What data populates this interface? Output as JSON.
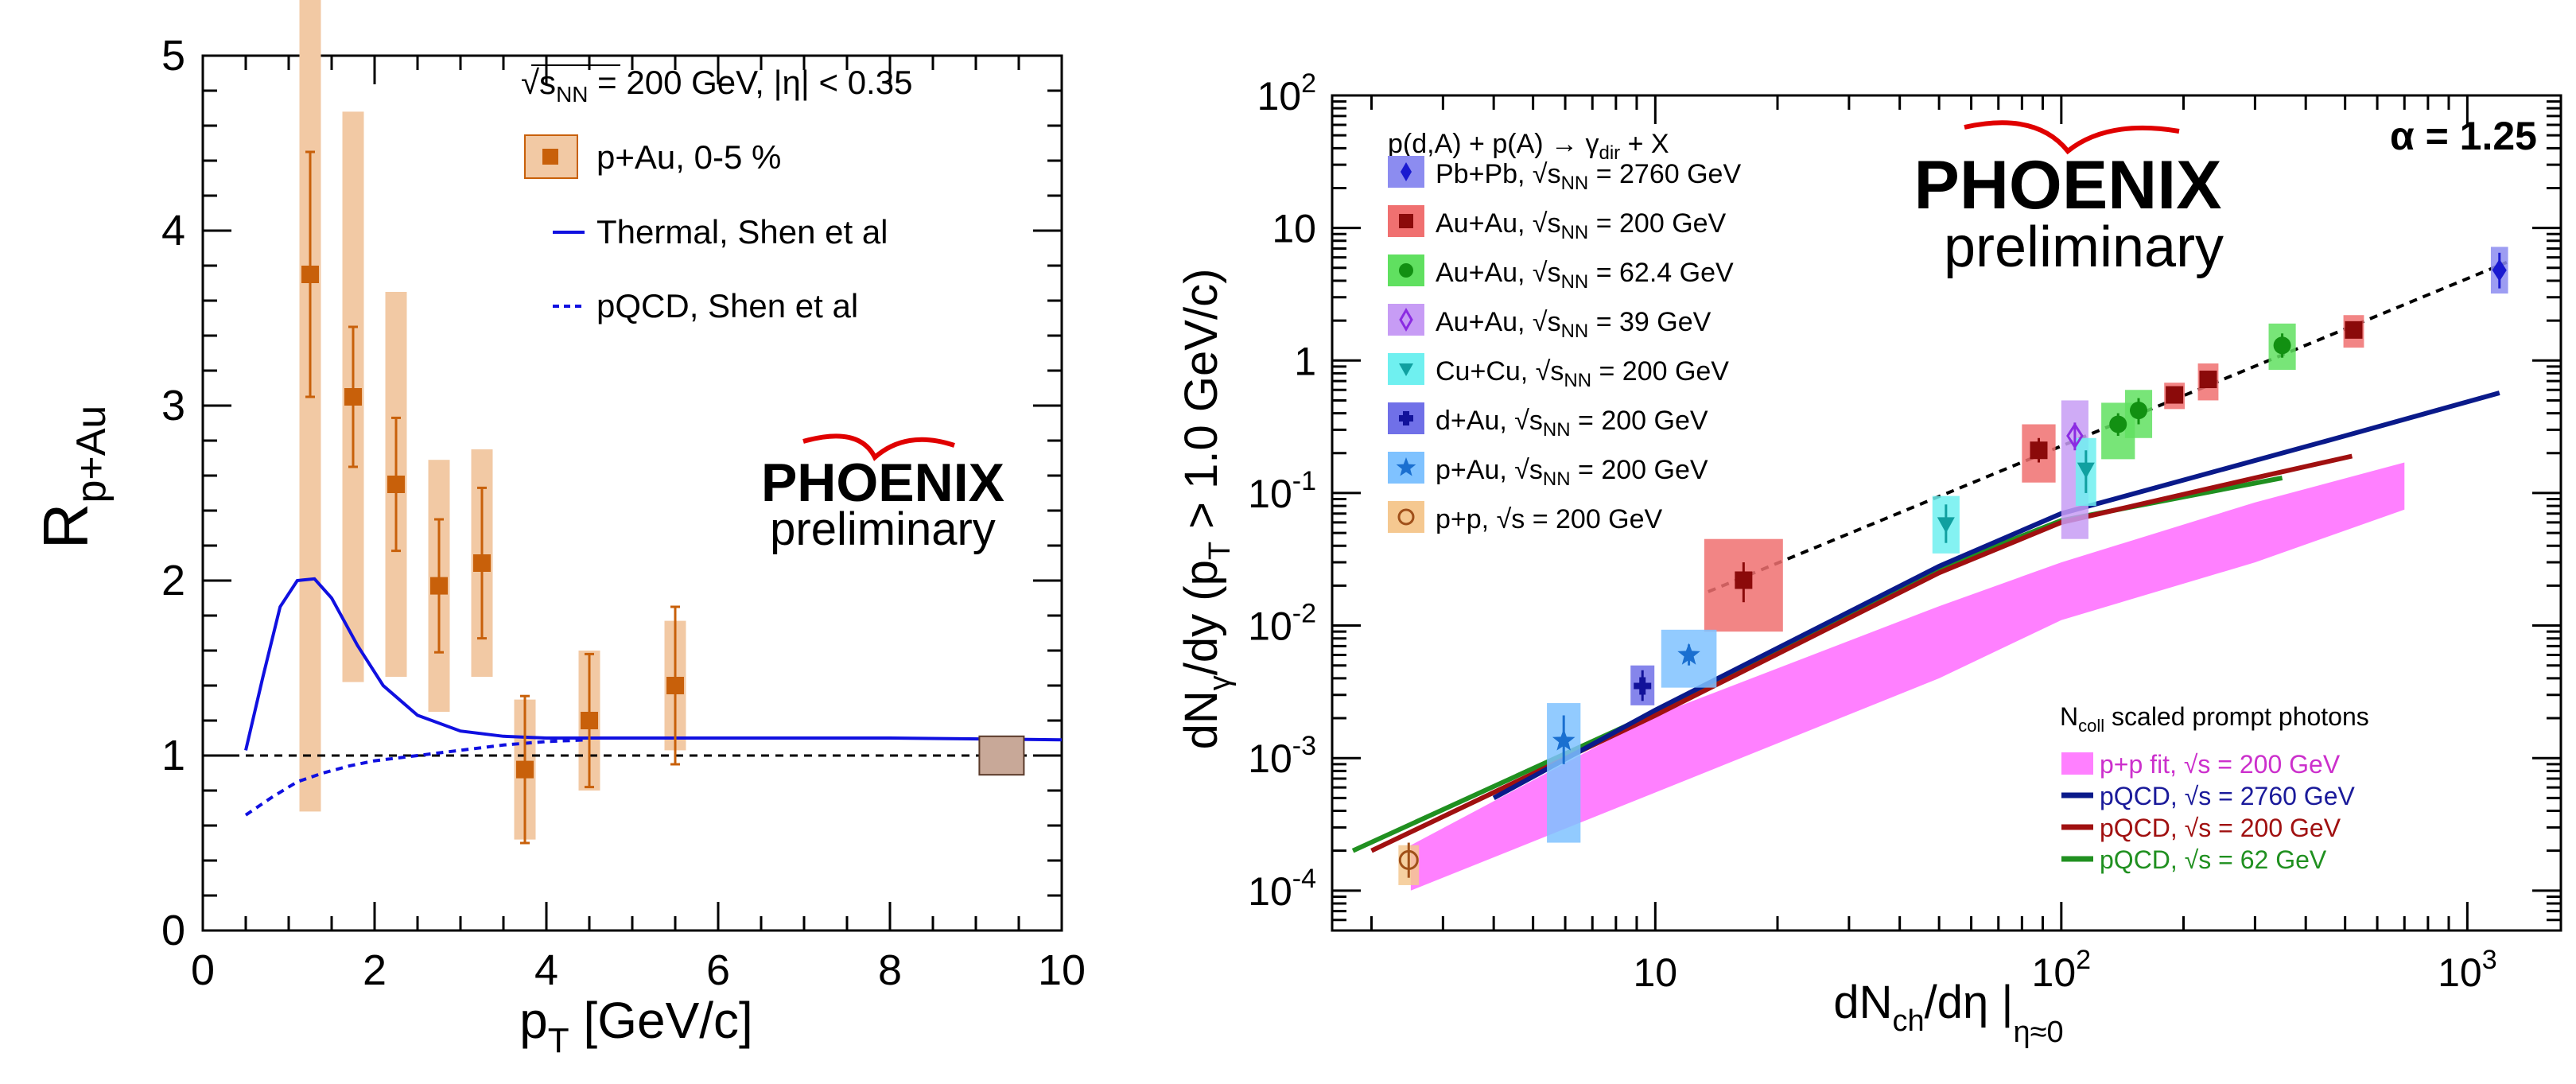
{
  "chart_data": [
    {
      "type": "scatter",
      "title": "",
      "xlabel_main": "p",
      "xlabel_sub": "T",
      "xlabel_rest": " [GeV/c]",
      "ylabel_main": "R",
      "ylabel_sub": "p+Au",
      "xlim": [
        0,
        10
      ],
      "ylim": [
        0,
        5
      ],
      "xticks": [
        0,
        2,
        4,
        6,
        8,
        10
      ],
      "yticks": [
        0,
        1,
        2,
        3,
        4,
        5
      ],
      "xtick_labels": [
        "0",
        "2",
        "4",
        "6",
        "8",
        "10"
      ],
      "ytick_labels": [
        "0",
        "1",
        "2",
        "3",
        "4",
        "5"
      ],
      "reference_line": 1,
      "annotation": {
        "prefix": "√s",
        "sub": "NN",
        "suffix": " = 200 GeV, |η| < 0.35"
      },
      "legend": [
        {
          "label": "p+Au, 0-5 %",
          "style": "box-marker",
          "color": "#c8600a"
        },
        {
          "label": "Thermal, Shen et al",
          "style": "solid",
          "color": "#1010e0"
        },
        {
          "label": "pQCD, Shen et al",
          "style": "dashed",
          "color": "#1010e0"
        }
      ],
      "series": [
        {
          "name": "p+Au, 0-5 %",
          "x": [
            1.25,
            1.75,
            2.25,
            2.75,
            3.25,
            3.75,
            4.5,
            5.5
          ],
          "y": [
            3.75,
            3.05,
            2.55,
            1.97,
            2.1,
            0.92,
            1.2,
            1.4
          ],
          "stat_err": [
            0.7,
            0.4,
            0.38,
            0.38,
            0.43,
            0.42,
            0.38,
            0.45
          ],
          "sys_err": [
            3.07,
            1.63,
            1.1,
            0.72,
            0.65,
            0.4,
            0.4,
            0.37
          ]
        },
        {
          "name": "Thermal, Shen et al",
          "x": [
            0.5,
            0.7,
            0.9,
            1.1,
            1.3,
            1.5,
            1.8,
            2.1,
            2.5,
            3.0,
            3.5,
            4.0,
            5.0,
            6.0,
            8.0,
            10.0
          ],
          "y": [
            1.03,
            1.45,
            1.85,
            2.0,
            2.01,
            1.9,
            1.63,
            1.4,
            1.23,
            1.14,
            1.11,
            1.1,
            1.1,
            1.1,
            1.1,
            1.09
          ]
        },
        {
          "name": "pQCD, Shen et al",
          "x": [
            0.5,
            0.8,
            1.1,
            1.4,
            1.7,
            2.0,
            2.5,
            3.0,
            3.5,
            4.0,
            4.5
          ],
          "y": [
            0.66,
            0.76,
            0.85,
            0.9,
            0.94,
            0.97,
            1.0,
            1.03,
            1.06,
            1.08,
            1.09
          ]
        }
      ],
      "norm_box": {
        "x": 9.3,
        "y": 1.0,
        "half_height": 0.11,
        "color": "#a08070"
      }
    },
    {
      "type": "scatter",
      "title": "",
      "xscale": "log",
      "yscale": "log",
      "xlabel_main": "dN",
      "xlabel_sub1": "ch",
      "xlabel_mid": "/dη |",
      "xlabel_sub2": "η≈0",
      "ylabel_main": "dN",
      "ylabel_sub1": "γ",
      "ylabel_mid": "/dy  (p",
      "ylabel_sub2": "T",
      "ylabel_rest": " > 1.0 GeV/c)",
      "xlim": [
        1.6,
        1700
      ],
      "ylim": [
        5e-05,
        100
      ],
      "xtick_labels": [
        {
          "base": "10",
          "exp": ""
        },
        {
          "base": "10",
          "exp": "2"
        },
        {
          "base": "10",
          "exp": "3"
        }
      ],
      "ytick_labels": [
        {
          "base": "10",
          "exp": "-4"
        },
        {
          "base": "10",
          "exp": "-3"
        },
        {
          "base": "10",
          "exp": "-2"
        },
        {
          "base": "10",
          "exp": "-1"
        },
        {
          "base": "1",
          "exp": ""
        },
        {
          "base": "10",
          "exp": ""
        },
        {
          "base": "10",
          "exp": "2"
        }
      ],
      "alpha_label": "α = 1.25",
      "legend_header": "p(d,A) + p(A) → γ",
      "legend_header_sub": "dir",
      "legend_header_rest": " + X",
      "legend": [
        {
          "label": "Pb+Pb, ",
          "energy": " = 2760 GeV",
          "sqrt": "s",
          "sub": "NN",
          "marker": "diamond",
          "color": "#1a1ad0",
          "fill": "#8c8cf0"
        },
        {
          "label": "Au+Au, ",
          "energy": " = 200 GeV",
          "sqrt": "s",
          "sub": "NN",
          "marker": "square",
          "color": "#8b0a0a",
          "fill": "#f07070"
        },
        {
          "label": "Au+Au, ",
          "energy": " = 62.4 GeV",
          "sqrt": "s",
          "sub": "NN",
          "marker": "circle",
          "color": "#129012",
          "fill": "#60e060"
        },
        {
          "label": "Au+Au, ",
          "energy": " = 39 GeV",
          "sqrt": "s",
          "sub": "NN",
          "marker": "open-diamond",
          "color": "#8b2be2",
          "fill": "#c79cf5"
        },
        {
          "label": "Cu+Cu, ",
          "energy": " = 200 GeV",
          "sqrt": "s",
          "sub": "NN",
          "marker": "triangle-down",
          "color": "#10a0a0",
          "fill": "#6ff0f0"
        },
        {
          "label": "d+Au, ",
          "energy": " = 200 GeV",
          "sqrt": "s",
          "sub": "NN",
          "marker": "cross",
          "color": "#12129a",
          "fill": "#7070e8"
        },
        {
          "label": "p+Au, ",
          "energy": " = 200 GeV",
          "sqrt": "s",
          "sub": "NN",
          "marker": "star",
          "color": "#1a6fd0",
          "fill": "#7fc2ff"
        },
        {
          "label": "p+p, ",
          "energy": " = 200 GeV",
          "sqrt": "s",
          "sub": "",
          "marker": "open-circle",
          "color": "#a0501a",
          "fill": "#f5c890"
        }
      ],
      "points": [
        {
          "system": "Pb+Pb",
          "x": 1200,
          "y": 4.8,
          "lo": 3.5,
          "hi": 6.5,
          "blo": 3.2,
          "bhi": 7.2,
          "bw": 1.05
        },
        {
          "system": "Au+Au 200",
          "x": 88,
          "y": 0.21,
          "lo": 0.17,
          "hi": 0.26,
          "blo": 0.12,
          "bhi": 0.33,
          "bw": 1.1
        },
        {
          "system": "Au+Au 200",
          "x": 190,
          "y": 0.55,
          "lo": 0.48,
          "hi": 0.62,
          "blo": 0.43,
          "bhi": 0.68,
          "bw": 1.06
        },
        {
          "system": "Au+Au 200",
          "x": 230,
          "y": 0.72,
          "lo": 0.64,
          "hi": 0.8,
          "blo": 0.5,
          "bhi": 0.95,
          "bw": 1.06
        },
        {
          "system": "Au+Au 200",
          "x": 525,
          "y": 1.7,
          "lo": 1.5,
          "hi": 1.95,
          "blo": 1.25,
          "bhi": 2.2,
          "bw": 1.06
        },
        {
          "system": "Au+Au 200",
          "x": 16.5,
          "y": 0.022,
          "lo": 0.015,
          "hi": 0.03,
          "blo": 0.009,
          "bhi": 0.045,
          "bw": 1.25
        },
        {
          "system": "Au+Au 62.4",
          "x": 138,
          "y": 0.33,
          "lo": 0.27,
          "hi": 0.4,
          "blo": 0.18,
          "bhi": 0.48,
          "bw": 1.1
        },
        {
          "system": "Au+Au 62.4",
          "x": 155,
          "y": 0.42,
          "lo": 0.33,
          "hi": 0.52,
          "blo": 0.26,
          "bhi": 0.6,
          "bw": 1.08
        },
        {
          "system": "Au+Au 62.4",
          "x": 350,
          "y": 1.3,
          "lo": 1.05,
          "hi": 1.6,
          "blo": 0.85,
          "bhi": 1.9,
          "bw": 1.08
        },
        {
          "system": "Au+Au 39",
          "x": 108,
          "y": 0.27,
          "lo": 0.21,
          "hi": 0.34,
          "blo": 0.045,
          "bhi": 0.5,
          "bw": 1.08
        },
        {
          "system": "Cu+Cu",
          "x": 52,
          "y": 0.058,
          "lo": 0.042,
          "hi": 0.082,
          "blo": 0.035,
          "bhi": 0.095,
          "bw": 1.08
        },
        {
          "system": "Cu+Cu",
          "x": 115,
          "y": 0.15,
          "lo": 0.1,
          "hi": 0.21,
          "blo": 0.08,
          "bhi": 0.26,
          "bw": 1.06
        },
        {
          "system": "d+Au",
          "x": 9.3,
          "y": 0.0035,
          "lo": 0.0027,
          "hi": 0.0046,
          "blo": 0.0025,
          "bhi": 0.005,
          "bw": 1.07
        },
        {
          "system": "p+Au",
          "x": 12.1,
          "y": 0.006,
          "lo": 0.005,
          "hi": 0.0072,
          "blo": 0.0034,
          "bhi": 0.0093,
          "bw": 1.17
        },
        {
          "system": "p+Au",
          "x": 5.95,
          "y": 0.00135,
          "lo": 0.0009,
          "hi": 0.0021,
          "blo": 0.00023,
          "bhi": 0.0026,
          "bw": 1.1
        },
        {
          "system": "p+p",
          "x": 2.47,
          "y": 0.00017,
          "lo": 0.000125,
          "hi": 0.00023,
          "blo": 0.00011,
          "bhi": 0.00022,
          "bw": 1.06
        }
      ],
      "fit_line": {
        "x": [
          13.5,
          1250
        ],
        "y": [
          0.018,
          5.5
        ]
      },
      "bands_legend_header": "N",
      "bands_legend_header_sub": "coll",
      "bands_legend_header_rest": " scaled prompt photons",
      "bands_legend": [
        {
          "label": "p+p fit, ",
          "energy": " = 200 GeV",
          "sqrt": "s",
          "color": "#ff80ff",
          "style": "band",
          "text_color": "#cc30cc"
        },
        {
          "label": "pQCD, ",
          "energy": " = 2760 GeV",
          "sqrt": "s",
          "color": "#0a1a8a",
          "style": "line",
          "text_color": "#1a1a9a"
        },
        {
          "label": "pQCD, ",
          "energy": " = 200 GeV",
          "sqrt": "s",
          "color": "#a01010",
          "style": "line",
          "text_color": "#a01010"
        },
        {
          "label": "pQCD, ",
          "energy": " = 62 GeV",
          "sqrt": "s",
          "color": "#209020",
          "style": "line",
          "text_color": "#209020"
        }
      ],
      "pp_fit_band": {
        "x": [
          2.5,
          10,
          50,
          100,
          300,
          700
        ],
        "y_low": [
          0.0001,
          0.00055,
          0.004,
          0.011,
          0.03,
          0.075
        ],
        "y_high": [
          0.00022,
          0.0021,
          0.014,
          0.03,
          0.085,
          0.17
        ]
      },
      "pqcd_2760": {
        "x": [
          4,
          10,
          50,
          100,
          500,
          1200
        ],
        "y": [
          0.0005,
          0.0023,
          0.028,
          0.07,
          0.27,
          0.57
        ]
      },
      "pqcd_200": {
        "x": [
          2,
          10,
          50,
          100,
          300,
          520
        ],
        "y": [
          0.0002,
          0.0021,
          0.025,
          0.06,
          0.13,
          0.19
        ]
      },
      "pqcd_62": {
        "x": [
          1.8,
          10,
          50,
          100,
          350
        ],
        "y": [
          0.0002,
          0.0022,
          0.027,
          0.062,
          0.13
        ]
      }
    }
  ],
  "logos": [
    {
      "name": "PHOENIX",
      "sub": "preliminary"
    },
    {
      "name": "PHOENIX",
      "sub": "preliminary"
    }
  ]
}
